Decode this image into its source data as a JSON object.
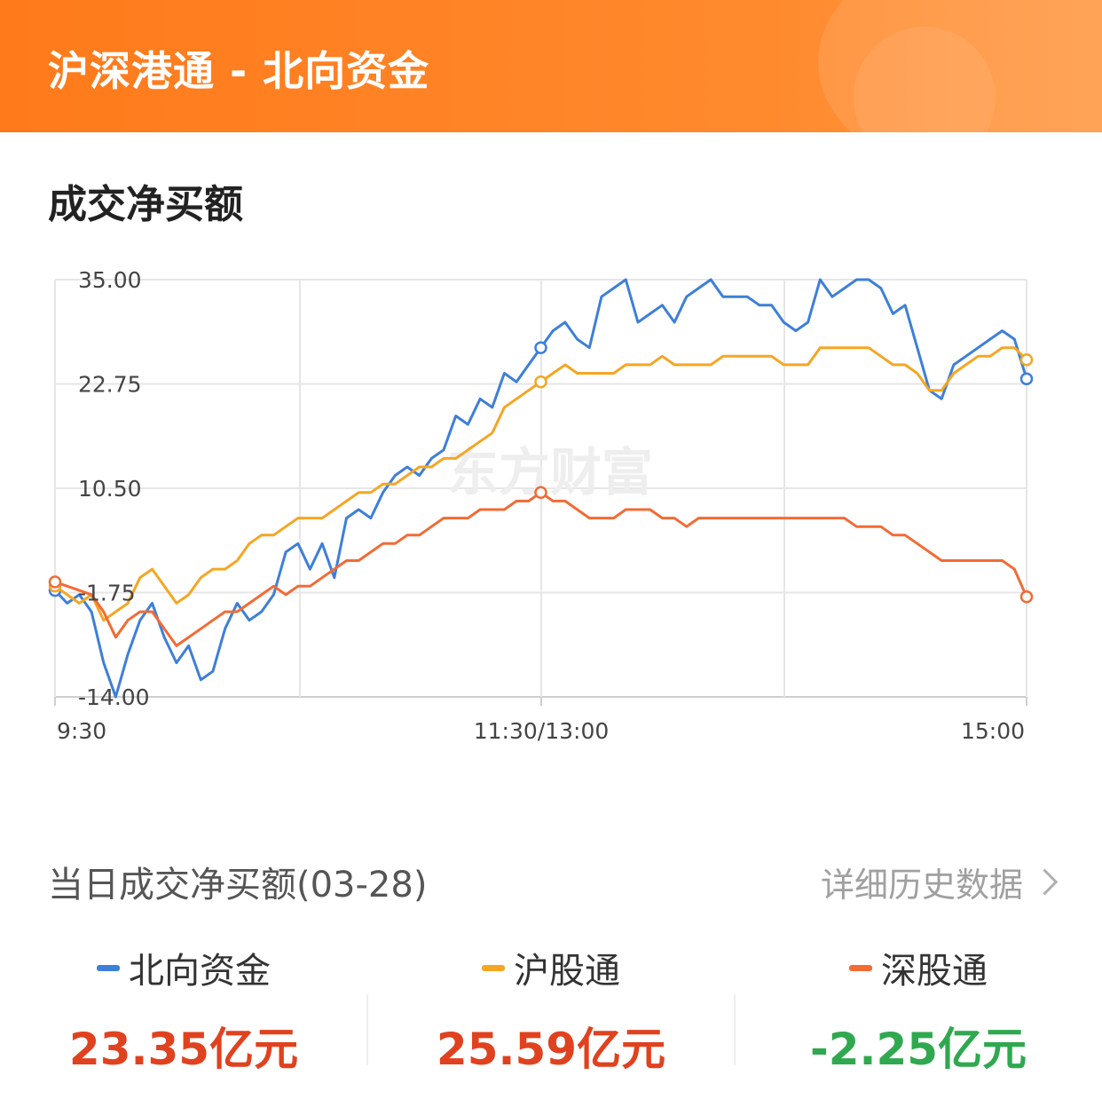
{
  "header": {
    "title": "沪深港通 - 北向资金"
  },
  "section": {
    "title": "成交净买额"
  },
  "summary": {
    "title": "当日成交净买额(03-28)",
    "history_link": "详细历史数据",
    "items": [
      {
        "label": "北向资金",
        "value": "23.35亿元",
        "color": "#3d7fd9",
        "value_color": "#e0421f"
      },
      {
        "label": "沪股通",
        "value": "25.59亿元",
        "color": "#f5a623",
        "value_color": "#e0421f"
      },
      {
        "label": "深股通",
        "value": "-2.25亿元",
        "color": "#f26b35",
        "value_color": "#2fa84f"
      }
    ]
  },
  "chart_data": {
    "type": "line",
    "ylim": [
      -14.0,
      35.0
    ],
    "y_ticks": [
      "35.00",
      "22.75",
      "10.50",
      "-1.75",
      "-14.00"
    ],
    "x_ticks": [
      "9:30",
      "11:30/13:00",
      "15:00"
    ],
    "watermark": "东方财富",
    "series": [
      {
        "name": "北向资金",
        "color": "#3d7fd9",
        "values": [
          -1.5,
          -3,
          -2,
          -4,
          -10,
          -14,
          -9,
          -5,
          -3,
          -7,
          -10,
          -8,
          -12,
          -11,
          -6,
          -3,
          -5,
          -4,
          -2,
          3,
          4,
          1,
          4,
          0,
          7,
          8,
          7,
          10,
          12,
          13,
          12,
          14,
          15,
          19,
          18,
          21,
          20,
          24,
          23,
          25,
          27,
          29,
          30,
          28,
          27,
          33,
          34,
          35,
          30,
          31,
          32,
          30,
          33,
          34,
          35,
          33,
          33,
          33,
          32,
          32,
          30,
          29,
          30,
          35,
          33,
          34,
          35,
          35,
          34,
          31,
          32,
          27,
          22,
          21,
          25,
          26,
          27,
          28,
          29,
          28,
          23.35
        ]
      },
      {
        "name": "沪股通",
        "color": "#f5a623",
        "values": [
          -1,
          -2,
          -3,
          -2,
          -5,
          -4,
          -3,
          0,
          1,
          -1,
          -3,
          -2,
          0,
          1,
          1,
          2,
          4,
          5,
          5,
          6,
          7,
          7,
          7,
          8,
          9,
          10,
          10,
          11,
          11,
          12,
          13,
          13,
          14,
          14,
          15,
          16,
          17,
          20,
          21,
          22,
          23,
          24,
          25,
          24,
          24,
          24,
          24,
          25,
          25,
          25,
          26,
          25,
          25,
          25,
          25,
          26,
          26,
          26,
          26,
          26,
          25,
          25,
          25,
          27,
          27,
          27,
          27,
          27,
          26,
          25,
          25,
          24,
          22,
          22,
          24,
          25,
          26,
          26,
          27,
          27,
          25.59
        ]
      },
      {
        "name": "深股通",
        "color": "#f26b35",
        "values": [
          -0.5,
          -1,
          -1.5,
          -2,
          -4,
          -7,
          -5,
          -4,
          -4,
          -6,
          -8,
          -7,
          -6,
          -5,
          -4,
          -4,
          -3,
          -2,
          -1,
          -2,
          -1,
          -1,
          0,
          1,
          2,
          2,
          3,
          4,
          4,
          5,
          5,
          6,
          7,
          7,
          7,
          8,
          8,
          8,
          9,
          9,
          10,
          9,
          9,
          8,
          7,
          7,
          7,
          8,
          8,
          8,
          7,
          7,
          6,
          7,
          7,
          7,
          7,
          7,
          7,
          7,
          7,
          7,
          7,
          7,
          7,
          7,
          6,
          6,
          6,
          5,
          5,
          4,
          3,
          2,
          2,
          2,
          2,
          2,
          2,
          1,
          -2.25
        ]
      }
    ]
  }
}
